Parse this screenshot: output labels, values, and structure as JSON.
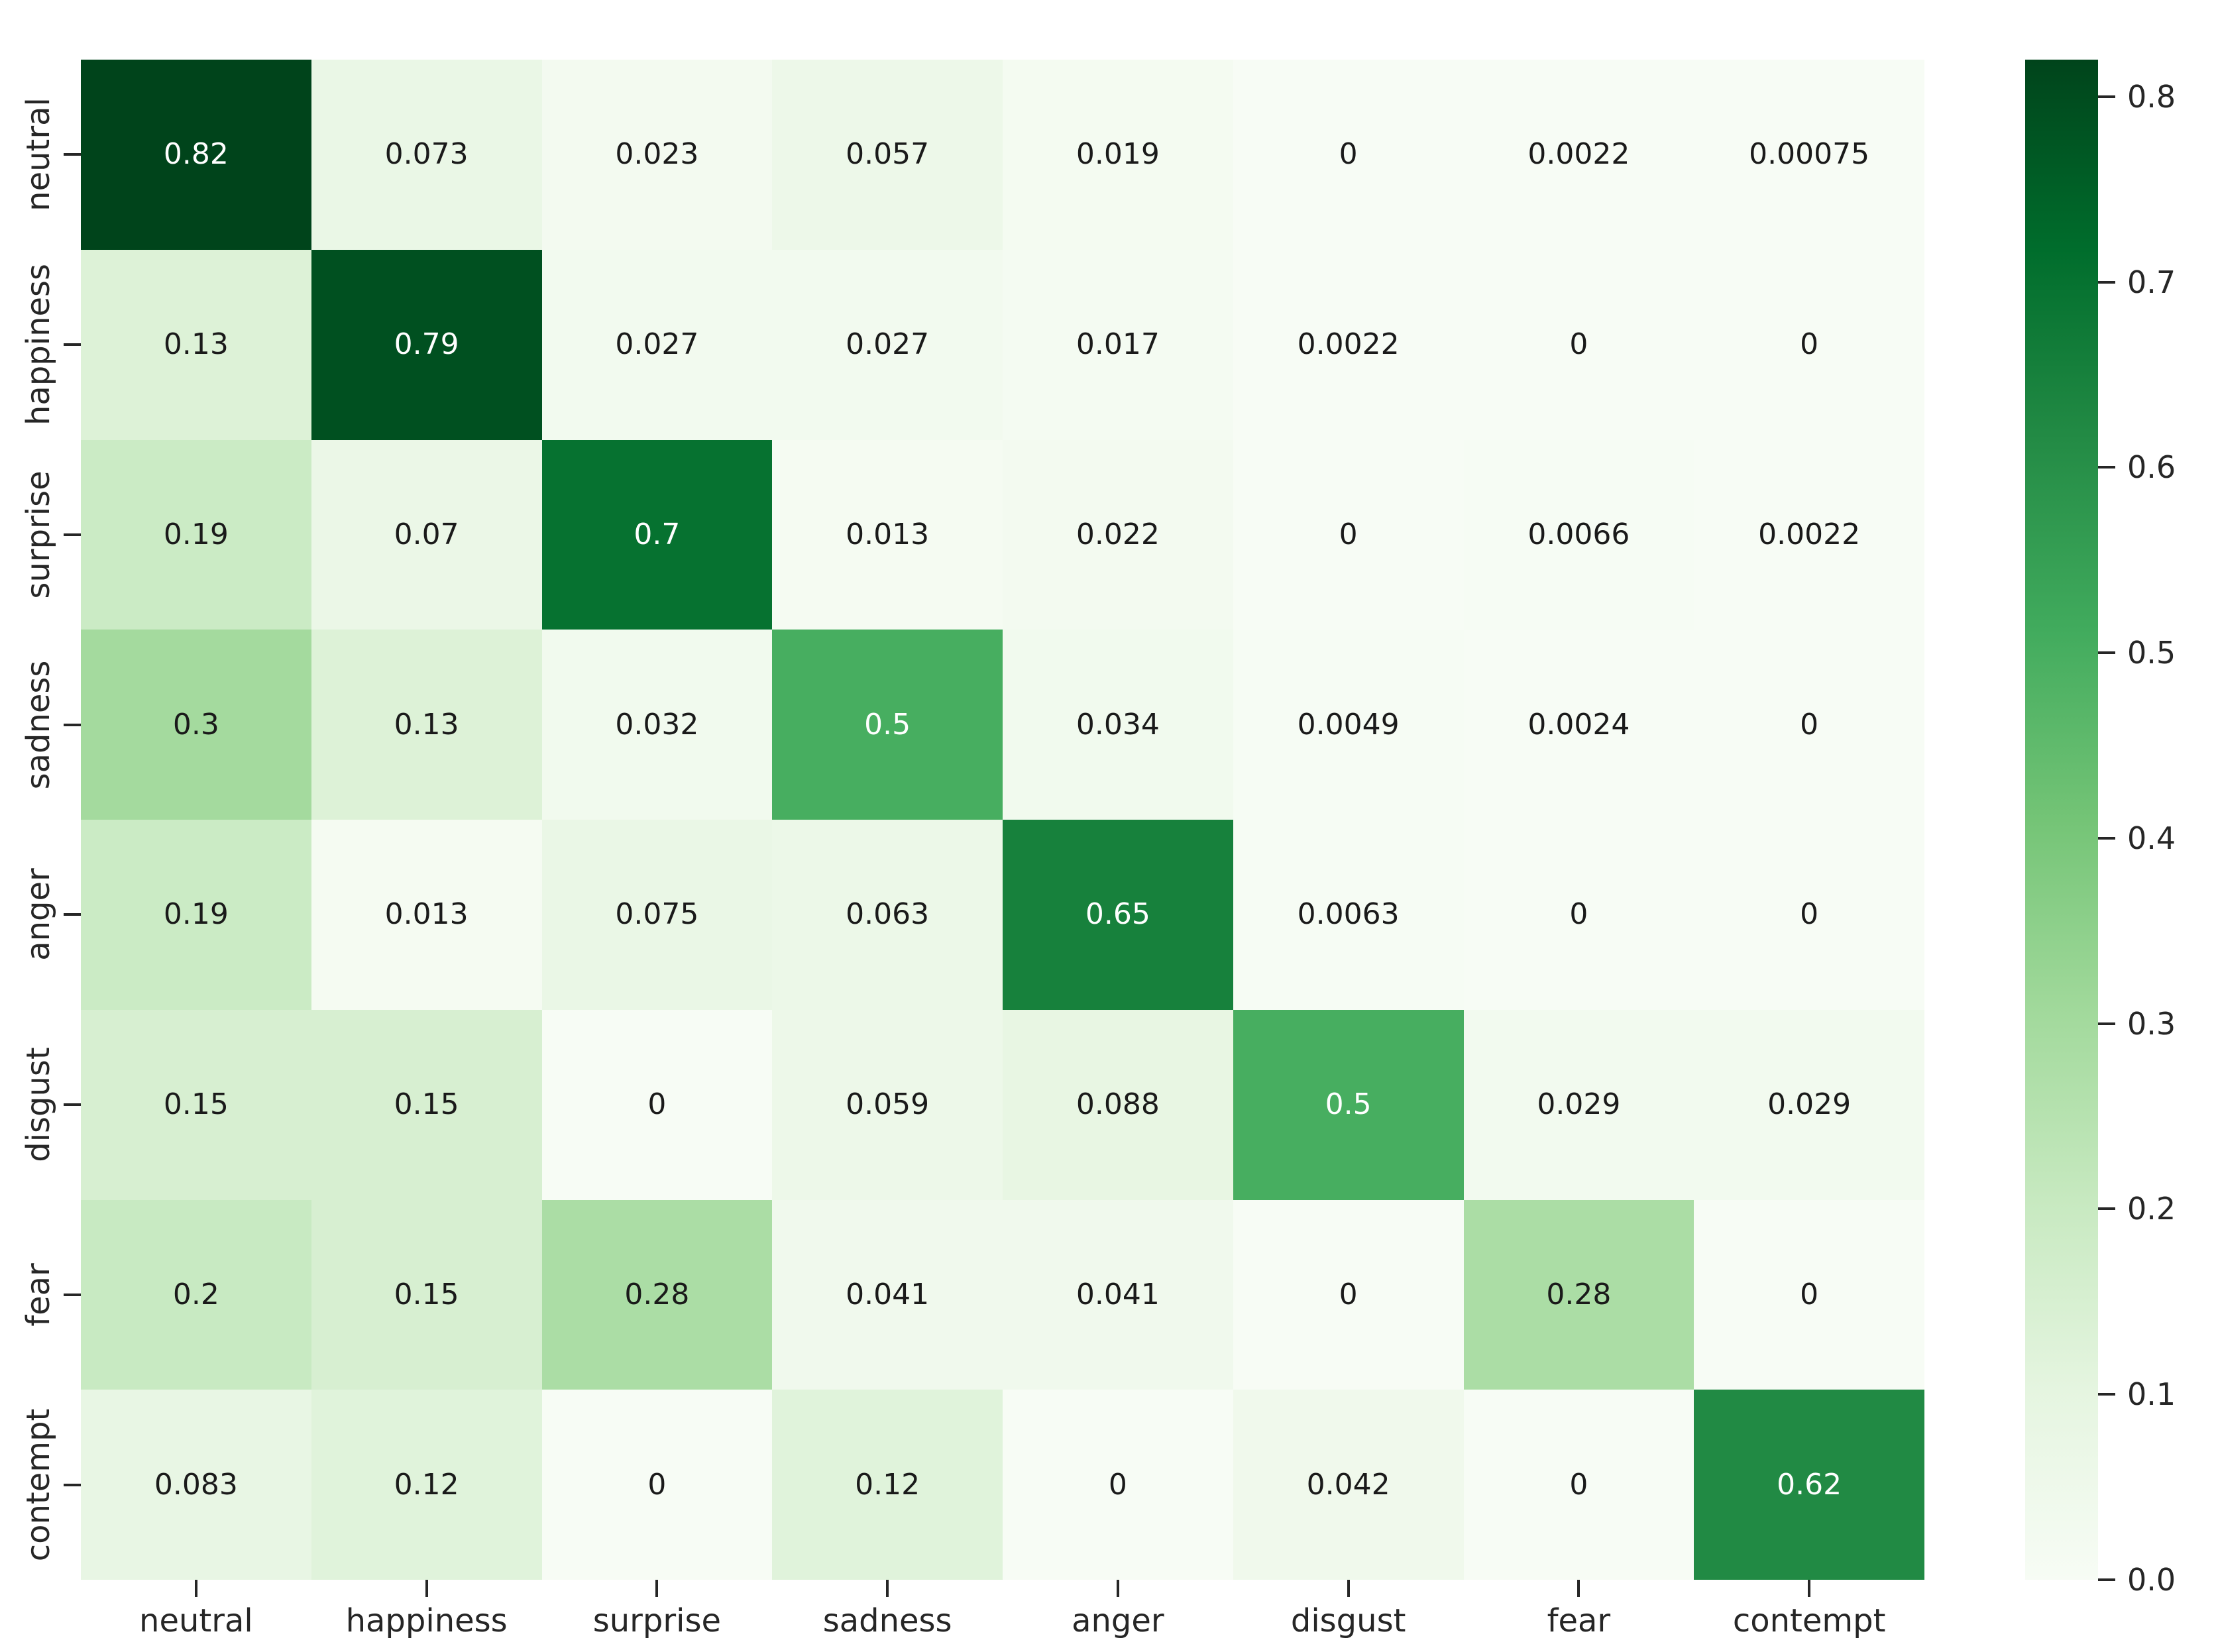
{
  "figure": {
    "background_color": "#ffffff",
    "tick_color": "#262626",
    "annotation_dark_text_color": "#1a1a1a",
    "annotation_light_text_color": "#ffffff"
  },
  "chart_data": {
    "type": "heatmap",
    "description": "Confusion matrix of emotion classification, row-normalized, seaborn Greens colormap with annotations and right-side colorbar",
    "x_tick_labels": [
      "neutral",
      "happiness",
      "surprise",
      "sadness",
      "anger",
      "disgust",
      "fear",
      "contempt"
    ],
    "y_tick_labels": [
      "neutral",
      "happiness",
      "surprise",
      "sadness",
      "anger",
      "disgust",
      "fear",
      "contempt"
    ],
    "matrix": [
      [
        "0.82",
        "0.073",
        "0.023",
        "0.057",
        "0.019",
        "0",
        "0.0022",
        "0.00075"
      ],
      [
        "0.13",
        "0.79",
        "0.027",
        "0.027",
        "0.017",
        "0.0022",
        "0",
        "0"
      ],
      [
        "0.19",
        "0.07",
        "0.7",
        "0.013",
        "0.022",
        "0",
        "0.0066",
        "0.0022"
      ],
      [
        "0.3",
        "0.13",
        "0.032",
        "0.5",
        "0.034",
        "0.0049",
        "0.0024",
        "0"
      ],
      [
        "0.19",
        "0.013",
        "0.075",
        "0.063",
        "0.65",
        "0.0063",
        "0",
        "0"
      ],
      [
        "0.15",
        "0.15",
        "0",
        "0.059",
        "0.088",
        "0.5",
        "0.029",
        "0.029"
      ],
      [
        "0.2",
        "0.15",
        "0.28",
        "0.041",
        "0.041",
        "0",
        "0.28",
        "0"
      ],
      [
        "0.083",
        "0.12",
        "0",
        "0.12",
        "0",
        "0.042",
        "0",
        "0.62"
      ]
    ],
    "vmin": 0,
    "vmax": 0.82,
    "colormap": "Greens",
    "colormap_stops": [
      "#f7fcf5",
      "#e5f5e0",
      "#c7e9c0",
      "#a1d99b",
      "#74c476",
      "#41ab5d",
      "#238b45",
      "#006d2c",
      "#00441b"
    ],
    "colorbar": {
      "tick_labels": [
        "0.8",
        "0.7",
        "0.6",
        "0.5",
        "0.4",
        "0.3",
        "0.2",
        "0.1",
        "0.0"
      ],
      "tick_values": [
        0.8,
        0.7,
        0.6,
        0.5,
        0.4,
        0.3,
        0.2,
        0.1,
        0.0
      ],
      "position": "right"
    },
    "grid": false,
    "legend": false
  }
}
